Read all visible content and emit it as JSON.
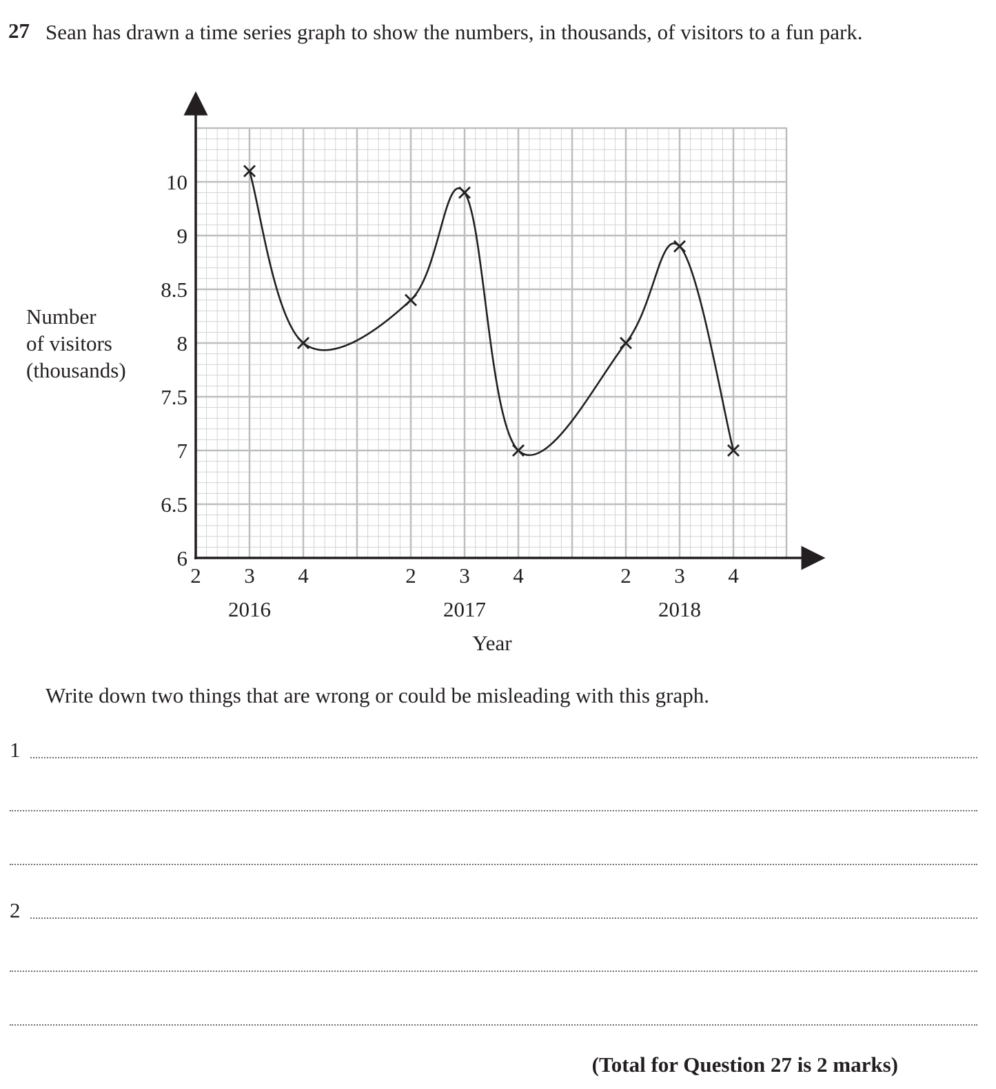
{
  "question": {
    "number": "27",
    "text": "Sean has drawn a time series graph to show the numbers, in thousands, of visitors to a fun park."
  },
  "chart_data": {
    "type": "line",
    "ylabel_lines": [
      "Number",
      "of visitors",
      "(thousands)"
    ],
    "xlabel": "Year",
    "y_tick_labels": [
      "6",
      "6.5",
      "7",
      "7.5",
      "8",
      "8.5",
      "9",
      "10"
    ],
    "x_tick_labels": [
      "2",
      "3",
      "4",
      "2",
      "3",
      "4",
      "2",
      "3",
      "4"
    ],
    "year_labels": [
      "2016",
      "2017",
      "2018"
    ],
    "points": [
      {
        "year": "2016",
        "quarter": "3",
        "value": 10.2
      },
      {
        "year": "2016",
        "quarter": "4",
        "value": 8
      },
      {
        "year": "2017",
        "quarter": "2",
        "value": 8.4
      },
      {
        "year": "2017",
        "quarter": "3",
        "value": 9.8
      },
      {
        "year": "2017",
        "quarter": "4",
        "value": 7
      },
      {
        "year": "2018",
        "quarter": "2",
        "value": 8
      },
      {
        "year": "2018",
        "quarter": "3",
        "value": 8.9
      },
      {
        "year": "2018",
        "quarter": "4",
        "value": 7
      }
    ],
    "marker": "cross",
    "grid": true
  },
  "instruction": "Write down two things that are wrong or could be misleading with this graph.",
  "answer_lines": [
    {
      "label": "1"
    },
    {
      "label": ""
    },
    {
      "label": ""
    },
    {
      "label": "2"
    },
    {
      "label": ""
    },
    {
      "label": ""
    }
  ],
  "total": "(Total for Question 27 is 2 marks)"
}
